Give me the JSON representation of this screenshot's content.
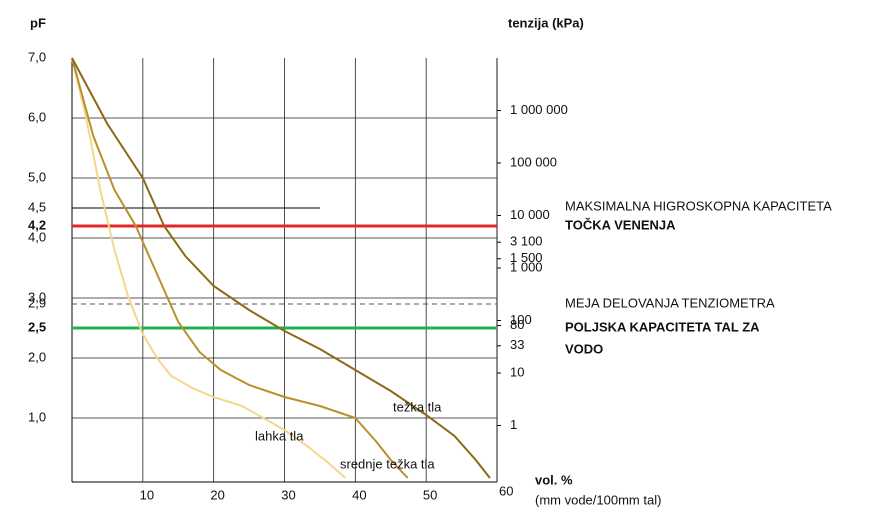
{
  "chart_data": {
    "type": "line",
    "y_label": "pF",
    "y2_label": "tenzija (kPa)",
    "x_label": "vol. %",
    "x_sublabel": "(mm vode/100mm tal)",
    "xlim": [
      0,
      60
    ],
    "xticks": [
      10,
      20,
      30,
      40,
      50,
      60
    ],
    "ylim": [
      0,
      7
    ],
    "yticks": [
      {
        "value": 7,
        "label": "7,0"
      },
      {
        "value": 6,
        "label": "6,0"
      },
      {
        "value": 5,
        "label": "5,0"
      },
      {
        "value": 4.5,
        "label": "4,5"
      },
      {
        "value": 4.2,
        "label": "4,2"
      },
      {
        "value": 4,
        "label": "4,0"
      },
      {
        "value": 3,
        "label": "3,0"
      },
      {
        "value": 2.9,
        "label": "2,9"
      },
      {
        "value": 2.5,
        "label": "2,5"
      },
      {
        "value": 2,
        "label": "2,0"
      },
      {
        "value": 1,
        "label": "1,0"
      }
    ],
    "y2log": true,
    "y2lim": [
      0.1,
      10000000
    ],
    "y2ticks": [
      {
        "value": 1000000,
        "label": "1 000 000"
      },
      {
        "value": 100000,
        "label": "100 000"
      },
      {
        "value": 10000,
        "label": "10 000"
      },
      {
        "value": 3100,
        "label": "3 100"
      },
      {
        "value": 1500,
        "label": "1 500"
      },
      {
        "value": 1000,
        "label": "1 000"
      },
      100,
      80,
      33,
      10,
      1
    ],
    "grid": true,
    "reference_lines": [
      {
        "value": 4.5,
        "label": [
          "MAKSIMALNA HIGROSKOPNA KAPACITETA"
        ],
        "color": "#000000",
        "x_end": 35,
        "style": "solid",
        "emphasis": false
      },
      {
        "value": 4.2,
        "label": [
          "TOČKA VENENJA"
        ],
        "color": "#e3262a",
        "style": "thick",
        "emphasis": true
      },
      {
        "value": 2.9,
        "label": [
          "MEJA DELOVANJA TENZIOMETRA"
        ],
        "color": "#555555",
        "style": "dashed",
        "emphasis": false
      },
      {
        "value": 2.5,
        "label": [
          "POLJSKA KAPACITETA TAL ZA",
          "VODO"
        ],
        "color": "#1fb050",
        "style": "thick",
        "emphasis": true
      }
    ],
    "series": [
      {
        "name": "lahka tla",
        "color": "#f3d78c",
        "x": [
          0,
          2,
          4,
          6,
          8,
          10,
          12,
          14,
          17,
          20,
          24,
          27,
          30,
          33,
          36,
          38.6
        ],
        "values": [
          7,
          6,
          4.8,
          3.8,
          3,
          2.4,
          2,
          1.7,
          1.5,
          1.35,
          1.2,
          1.0,
          0.8,
          0.55,
          0.27,
          0
        ]
      },
      {
        "name": "srednje težka tla",
        "color": "#b8912c",
        "x": [
          0,
          3,
          6,
          9,
          12,
          15,
          18,
          21,
          25,
          30,
          35,
          40,
          43,
          45,
          47.4
        ],
        "values": [
          7,
          5.7,
          4.8,
          4.2,
          3.4,
          2.6,
          2.1,
          1.8,
          1.55,
          1.35,
          1.2,
          1.0,
          0.6,
          0.3,
          0
        ]
      },
      {
        "name": "težka tla",
        "color": "#8a6a14",
        "x": [
          0,
          5,
          10,
          13,
          16,
          20,
          25,
          30,
          35,
          40,
          45,
          50,
          54,
          57,
          59
        ],
        "values": [
          7,
          5.9,
          5.0,
          4.2,
          3.7,
          3.2,
          2.8,
          2.45,
          2.15,
          1.8,
          1.45,
          1.05,
          0.7,
          0.3,
          0
        ]
      }
    ]
  }
}
